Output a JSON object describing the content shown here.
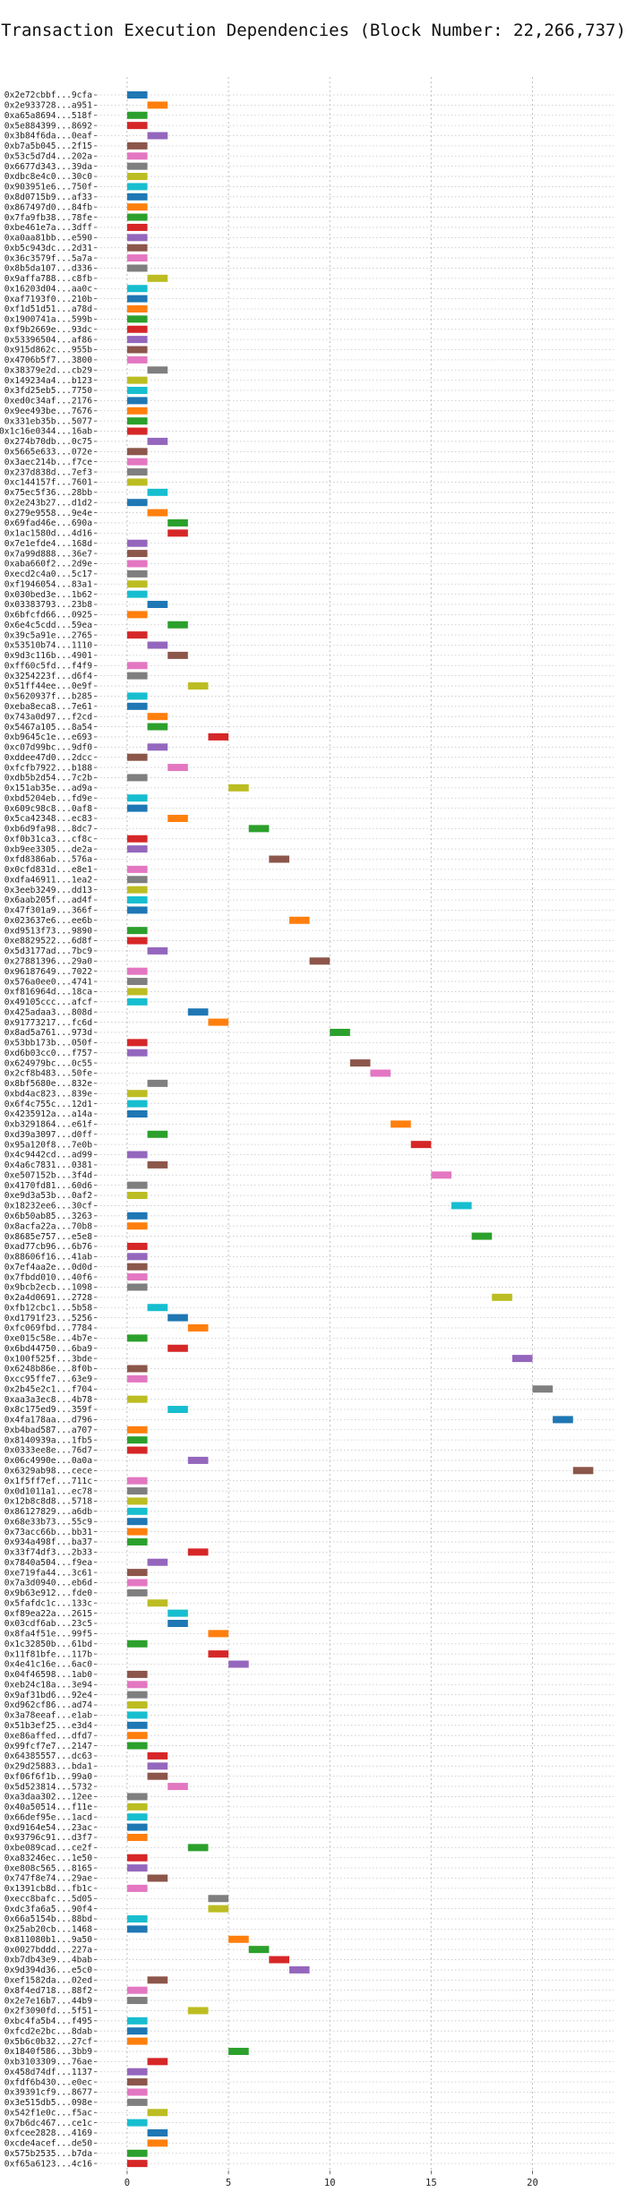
{
  "chart_data": {
    "type": "bar",
    "title": "Transaction Execution Dependencies (Block Number: 22,266,737)",
    "xlabel": "",
    "ylabel": "",
    "xlim": [
      -1.5,
      24
    ],
    "xticks": [
      0,
      5,
      10,
      15,
      20
    ],
    "grid": true,
    "palette": [
      "#1f77b4",
      "#ff7f0e",
      "#2ca02c",
      "#d62728",
      "#9467bd",
      "#8c564b",
      "#e377c2",
      "#7f7f7f",
      "#bcbd22",
      "#17becf"
    ],
    "transactions": [
      {
        "label": "0x2e72cbbf...9cfa",
        "start": 0,
        "end": 1
      },
      {
        "label": "0x2e933728...a951",
        "start": 1,
        "end": 2
      },
      {
        "label": "0xa65a8694...518f",
        "start": 0,
        "end": 1
      },
      {
        "label": "0x5e884399...8692",
        "start": 0,
        "end": 1
      },
      {
        "label": "0x3b84f6da...0eaf",
        "start": 1,
        "end": 2
      },
      {
        "label": "0xb7a5b045...2f15",
        "start": 0,
        "end": 1
      },
      {
        "label": "0x53c5d7d4...202a",
        "start": 0,
        "end": 1
      },
      {
        "label": "0x6677d343...39da",
        "start": 0,
        "end": 1
      },
      {
        "label": "0xdbc8e4c0...30c0",
        "start": 0,
        "end": 1
      },
      {
        "label": "0x903951e6...750f",
        "start": 0,
        "end": 1
      },
      {
        "label": "0x8d0715b9...af33",
        "start": 0,
        "end": 1
      },
      {
        "label": "0x867497d0...84fb",
        "start": 0,
        "end": 1
      },
      {
        "label": "0x7fa9fb38...78fe",
        "start": 0,
        "end": 1
      },
      {
        "label": "0xbe461e7a...3dff",
        "start": 0,
        "end": 1
      },
      {
        "label": "0xa0aa81bb...e590",
        "start": 0,
        "end": 1
      },
      {
        "label": "0xb5c943dc...2d31",
        "start": 0,
        "end": 1
      },
      {
        "label": "0x36c3579f...5a7a",
        "start": 0,
        "end": 1
      },
      {
        "label": "0x8b5da107...d336",
        "start": 0,
        "end": 1
      },
      {
        "label": "0x9affa788...c8fb",
        "start": 1,
        "end": 2
      },
      {
        "label": "0x16203d04...aa0c",
        "start": 0,
        "end": 1
      },
      {
        "label": "0xaf7193f0...210b",
        "start": 0,
        "end": 1
      },
      {
        "label": "0xf1d51d51...a78d",
        "start": 0,
        "end": 1
      },
      {
        "label": "0x1900741a...599b",
        "start": 0,
        "end": 1
      },
      {
        "label": "0xf9b2669e...93dc",
        "start": 0,
        "end": 1
      },
      {
        "label": "0x53396504...af86",
        "start": 0,
        "end": 1
      },
      {
        "label": "0x915d862c...955b",
        "start": 0,
        "end": 1
      },
      {
        "label": "0x4706b5f7...3800",
        "start": 0,
        "end": 1
      },
      {
        "label": "0x38379e2d...cb29",
        "start": 1,
        "end": 2
      },
      {
        "label": "0x149234a4...b123",
        "start": 0,
        "end": 1
      },
      {
        "label": "0x3fd25eb5...7750",
        "start": 0,
        "end": 1
      },
      {
        "label": "0xed0c34af...2176",
        "start": 0,
        "end": 1
      },
      {
        "label": "0x9ee493be...7676",
        "start": 0,
        "end": 1
      },
      {
        "label": "0x331eb35b...5077",
        "start": 0,
        "end": 1
      },
      {
        "label": "0x1c16e0344...16ab",
        "start": 0,
        "end": 1
      },
      {
        "label": "0x274b70db...0c75",
        "start": 1,
        "end": 2
      },
      {
        "label": "0x5665e633...072e",
        "start": 0,
        "end": 1
      },
      {
        "label": "0x3aec214b...f7ce",
        "start": 0,
        "end": 1
      },
      {
        "label": "0x237d838d...7ef3",
        "start": 0,
        "end": 1
      },
      {
        "label": "0xc144157f...7601",
        "start": 0,
        "end": 1
      },
      {
        "label": "0x75ec5f36...28bb",
        "start": 1,
        "end": 2
      },
      {
        "label": "0x2e243b27...d1d2",
        "start": 0,
        "end": 1
      },
      {
        "label": "0x279e9558...9e4e",
        "start": 1,
        "end": 2
      },
      {
        "label": "0x69fad46e...690a",
        "start": 2,
        "end": 3
      },
      {
        "label": "0x1ac1580d...4d16",
        "start": 2,
        "end": 3
      },
      {
        "label": "0x7e1efde4...168d",
        "start": 0,
        "end": 1
      },
      {
        "label": "0x7a99d888...36e7",
        "start": 0,
        "end": 1
      },
      {
        "label": "0xaba660f2...2d9e",
        "start": 0,
        "end": 1
      },
      {
        "label": "0xecd2c4a0...5c17",
        "start": 0,
        "end": 1
      },
      {
        "label": "0xf1946054...83a1",
        "start": 0,
        "end": 1
      },
      {
        "label": "0x030bed3e...1b62",
        "start": 0,
        "end": 1
      },
      {
        "label": "0x03383793...23b8",
        "start": 1,
        "end": 2
      },
      {
        "label": "0x6bfcfd66...0925",
        "start": 0,
        "end": 1
      },
      {
        "label": "0x6e4c5cdd...59ea",
        "start": 2,
        "end": 3
      },
      {
        "label": "0x39c5a91e...2765",
        "start": 0,
        "end": 1
      },
      {
        "label": "0x53510b74...1110",
        "start": 1,
        "end": 2
      },
      {
        "label": "0x9d3c116b...4901",
        "start": 2,
        "end": 3
      },
      {
        "label": "0xff60c5fd...f4f9",
        "start": 0,
        "end": 1
      },
      {
        "label": "0x3254223f...d6f4",
        "start": 0,
        "end": 1
      },
      {
        "label": "0x51ff44ee...0e9f",
        "start": 3,
        "end": 4
      },
      {
        "label": "0x5620937f...b285",
        "start": 0,
        "end": 1
      },
      {
        "label": "0xeba8eca8...7e61",
        "start": 0,
        "end": 1
      },
      {
        "label": "0x743a0d97...f2cd",
        "start": 1,
        "end": 2
      },
      {
        "label": "0x5467a105...8a54",
        "start": 1,
        "end": 2
      },
      {
        "label": "0xb9645c1e...e693",
        "start": 4,
        "end": 5
      },
      {
        "label": "0xc07d99bc...9df0",
        "start": 1,
        "end": 2
      },
      {
        "label": "0xddee47d0...2dcc",
        "start": 0,
        "end": 1
      },
      {
        "label": "0xfcfb7922...b188",
        "start": 2,
        "end": 3
      },
      {
        "label": "0xdb5b2d54...7c2b",
        "start": 0,
        "end": 1
      },
      {
        "label": "0x151ab35e...ad9a",
        "start": 5,
        "end": 6
      },
      {
        "label": "0xbd5204eb...fd9e",
        "start": 0,
        "end": 1
      },
      {
        "label": "0x609c98c8...0af8",
        "start": 0,
        "end": 1
      },
      {
        "label": "0x5ca42348...ec83",
        "start": 2,
        "end": 3
      },
      {
        "label": "0xb6d9fa98...8dc7",
        "start": 6,
        "end": 7
      },
      {
        "label": "0xf0b31ca3...cf8c",
        "start": 0,
        "end": 1
      },
      {
        "label": "0xb9ee3305...de2a",
        "start": 0,
        "end": 1
      },
      {
        "label": "0xfd8386ab...576a",
        "start": 7,
        "end": 8
      },
      {
        "label": "0x0cfd831d...e8e1",
        "start": 0,
        "end": 1
      },
      {
        "label": "0xdfa46911...1ea2",
        "start": 0,
        "end": 1
      },
      {
        "label": "0x3eeb3249...dd13",
        "start": 0,
        "end": 1
      },
      {
        "label": "0x6aab205f...ad4f",
        "start": 0,
        "end": 1
      },
      {
        "label": "0x47f301a9...366f",
        "start": 0,
        "end": 1
      },
      {
        "label": "0x023637e6...ee6b",
        "start": 8,
        "end": 9
      },
      {
        "label": "0xd9513f73...9890",
        "start": 0,
        "end": 1
      },
      {
        "label": "0xe8829522...6d8f",
        "start": 0,
        "end": 1
      },
      {
        "label": "0x5d3177ad...7bc9",
        "start": 1,
        "end": 2
      },
      {
        "label": "0x27881396...29a0",
        "start": 9,
        "end": 10
      },
      {
        "label": "0x96187649...7022",
        "start": 0,
        "end": 1
      },
      {
        "label": "0x576a0ee0...4741",
        "start": 0,
        "end": 1
      },
      {
        "label": "0xf816964d...18ca",
        "start": 0,
        "end": 1
      },
      {
        "label": "0x49105ccc...afcf",
        "start": 0,
        "end": 1
      },
      {
        "label": "0x425adaa3...808d",
        "start": 3,
        "end": 4
      },
      {
        "label": "0x91773217...fc6d",
        "start": 4,
        "end": 5
      },
      {
        "label": "0x8ad5a761...973d",
        "start": 10,
        "end": 11
      },
      {
        "label": "0x53bb173b...050f",
        "start": 0,
        "end": 1
      },
      {
        "label": "0xd6b03cc0...f757",
        "start": 0,
        "end": 1
      },
      {
        "label": "0x624979bc...0c55",
        "start": 11,
        "end": 12
      },
      {
        "label": "0x2cf8b483...50fe",
        "start": 12,
        "end": 13
      },
      {
        "label": "0x8bf5680e...832e",
        "start": 1,
        "end": 2
      },
      {
        "label": "0xbd4ac823...839e",
        "start": 0,
        "end": 1
      },
      {
        "label": "0x6f4c755c...12d1",
        "start": 0,
        "end": 1
      },
      {
        "label": "0x4235912a...a14a",
        "start": 0,
        "end": 1
      },
      {
        "label": "0xb3291864...e61f",
        "start": 13,
        "end": 14
      },
      {
        "label": "0xd39a3097...d0ff",
        "start": 1,
        "end": 2
      },
      {
        "label": "0x95a120f8...7e0b",
        "start": 14,
        "end": 15
      },
      {
        "label": "0x4c9442cd...ad99",
        "start": 0,
        "end": 1
      },
      {
        "label": "0x4a6c7831...0381",
        "start": 1,
        "end": 2
      },
      {
        "label": "0xe507152b...3f4d",
        "start": 15,
        "end": 16
      },
      {
        "label": "0x4170fd81...60d6",
        "start": 0,
        "end": 1
      },
      {
        "label": "0xe9d3a53b...0af2",
        "start": 0,
        "end": 1
      },
      {
        "label": "0x18232ee6...30cf",
        "start": 16,
        "end": 17
      },
      {
        "label": "0x6b50ab85...3263",
        "start": 0,
        "end": 1
      },
      {
        "label": "0x8acfa22a...70b8",
        "start": 0,
        "end": 1
      },
      {
        "label": "0x8685e757...e5e8",
        "start": 17,
        "end": 18
      },
      {
        "label": "0xad77cb96...6b76",
        "start": 0,
        "end": 1
      },
      {
        "label": "0x88606f16...41ab",
        "start": 0,
        "end": 1
      },
      {
        "label": "0x7ef4aa2e...0d0d",
        "start": 0,
        "end": 1
      },
      {
        "label": "0x7fbdd010...40f6",
        "start": 0,
        "end": 1
      },
      {
        "label": "0x9bcb2ecb...1098",
        "start": 0,
        "end": 1
      },
      {
        "label": "0x2a4d0691...2728",
        "start": 18,
        "end": 19
      },
      {
        "label": "0xfb12cbc1...5b58",
        "start": 1,
        "end": 2
      },
      {
        "label": "0xd1791f23...5256",
        "start": 2,
        "end": 3
      },
      {
        "label": "0xfc069fbd...7784",
        "start": 3,
        "end": 4
      },
      {
        "label": "0xe015c58e...4b7e",
        "start": 0,
        "end": 1
      },
      {
        "label": "0x6bd44750...6ba9",
        "start": 2,
        "end": 3
      },
      {
        "label": "0x100f525f...3bde",
        "start": 19,
        "end": 20
      },
      {
        "label": "0x6248b86e...8f0b",
        "start": 0,
        "end": 1
      },
      {
        "label": "0xcc95ffe7...63e9",
        "start": 0,
        "end": 1
      },
      {
        "label": "0x2b45e2c1...f704",
        "start": 20,
        "end": 21
      },
      {
        "label": "0xaa3a3ec8...4b78",
        "start": 0,
        "end": 1
      },
      {
        "label": "0x8c175ed9...359f",
        "start": 2,
        "end": 3
      },
      {
        "label": "0x4fa178aa...d796",
        "start": 21,
        "end": 22
      },
      {
        "label": "0xb4bad587...a707",
        "start": 0,
        "end": 1
      },
      {
        "label": "0x8140939a...1fb5",
        "start": 0,
        "end": 1
      },
      {
        "label": "0x0333ee8e...76d7",
        "start": 0,
        "end": 1
      },
      {
        "label": "0x06c4990e...0a0a",
        "start": 3,
        "end": 4
      },
      {
        "label": "0x6329ab98...cece",
        "start": 22,
        "end": 23
      },
      {
        "label": "0x1f5ff7ef...711c",
        "start": 0,
        "end": 1
      },
      {
        "label": "0x0d1011a1...ec78",
        "start": 0,
        "end": 1
      },
      {
        "label": "0x12b8c8d8...5718",
        "start": 0,
        "end": 1
      },
      {
        "label": "0x86127829...a6db",
        "start": 0,
        "end": 1
      },
      {
        "label": "0x68e33b73...55c9",
        "start": 0,
        "end": 1
      },
      {
        "label": "0x73acc66b...bb31",
        "start": 0,
        "end": 1
      },
      {
        "label": "0x934a498f...ba37",
        "start": 0,
        "end": 1
      },
      {
        "label": "0x33f74df3...2b33",
        "start": 3,
        "end": 4
      },
      {
        "label": "0x7840a504...f9ea",
        "start": 1,
        "end": 2
      },
      {
        "label": "0xe719fa44...3c61",
        "start": 0,
        "end": 1
      },
      {
        "label": "0x7a3d0940...eb6d",
        "start": 0,
        "end": 1
      },
      {
        "label": "0x9b63e912...fde0",
        "start": 0,
        "end": 1
      },
      {
        "label": "0x5fafdc1c...133c",
        "start": 1,
        "end": 2
      },
      {
        "label": "0xf89ea22a...2615",
        "start": 2,
        "end": 3
      },
      {
        "label": "0x03cdf6ab...23c5",
        "start": 2,
        "end": 3
      },
      {
        "label": "0x8fa4f51e...99f5",
        "start": 4,
        "end": 5
      },
      {
        "label": "0x1c32850b...61bd",
        "start": 0,
        "end": 1
      },
      {
        "label": "0x11f81bfe...117b",
        "start": 4,
        "end": 5
      },
      {
        "label": "0x4e41c16e...6ac0",
        "start": 5,
        "end": 6
      },
      {
        "label": "0x04f46598...1ab0",
        "start": 0,
        "end": 1
      },
      {
        "label": "0xeb24c18a...3e94",
        "start": 0,
        "end": 1
      },
      {
        "label": "0x9af31bd6...92e4",
        "start": 0,
        "end": 1
      },
      {
        "label": "0xd962cf86...ad74",
        "start": 0,
        "end": 1
      },
      {
        "label": "0x3a78eeaf...e1ab",
        "start": 0,
        "end": 1
      },
      {
        "label": "0x51b3ef25...e3d4",
        "start": 0,
        "end": 1
      },
      {
        "label": "0xe86affed...dfd7",
        "start": 0,
        "end": 1
      },
      {
        "label": "0x99fcf7e7...2147",
        "start": 0,
        "end": 1
      },
      {
        "label": "0x64385557...dc63",
        "start": 1,
        "end": 2
      },
      {
        "label": "0x29d25883...bda1",
        "start": 1,
        "end": 2
      },
      {
        "label": "0xf06f6f1b...99a0",
        "start": 1,
        "end": 2
      },
      {
        "label": "0x5d523814...5732",
        "start": 2,
        "end": 3
      },
      {
        "label": "0xa3daa302...12ee",
        "start": 0,
        "end": 1
      },
      {
        "label": "0x40a50514...f11e",
        "start": 0,
        "end": 1
      },
      {
        "label": "0x66def95e...1acd",
        "start": 0,
        "end": 1
      },
      {
        "label": "0xd9164e54...23ac",
        "start": 0,
        "end": 1
      },
      {
        "label": "0x93796c91...d3f7",
        "start": 0,
        "end": 1
      },
      {
        "label": "0xbe089cad...ce2f",
        "start": 3,
        "end": 4
      },
      {
        "label": "0xa83246ec...1e50",
        "start": 0,
        "end": 1
      },
      {
        "label": "0xe808c565...8165",
        "start": 0,
        "end": 1
      },
      {
        "label": "0x747f8e74...29ae",
        "start": 1,
        "end": 2
      },
      {
        "label": "0x1391cb8d...fb1c",
        "start": 0,
        "end": 1
      },
      {
        "label": "0xecc8bafc...5d05",
        "start": 4,
        "end": 5
      },
      {
        "label": "0xdc3fa6a5...90f4",
        "start": 4,
        "end": 5
      },
      {
        "label": "0x66a5154b...88bd",
        "start": 0,
        "end": 1
      },
      {
        "label": "0x25ab20cb...1468",
        "start": 0,
        "end": 1
      },
      {
        "label": "0x811080b1...9a50",
        "start": 5,
        "end": 6
      },
      {
        "label": "0x0027bddd...227a",
        "start": 6,
        "end": 7
      },
      {
        "label": "0xb7db43e9...4bab",
        "start": 7,
        "end": 8
      },
      {
        "label": "0x9d394d36...e5c0",
        "start": 8,
        "end": 9
      },
      {
        "label": "0xef1582da...02ed",
        "start": 1,
        "end": 2
      },
      {
        "label": "0x8f4ed718...88f2",
        "start": 0,
        "end": 1
      },
      {
        "label": "0x2e7e16b7...44b9",
        "start": 0,
        "end": 1
      },
      {
        "label": "0x2f3090fd...5f51",
        "start": 3,
        "end": 4
      },
      {
        "label": "0xbc4fa5b4...f495",
        "start": 0,
        "end": 1
      },
      {
        "label": "0xfcd2e2bc...8dab",
        "start": 0,
        "end": 1
      },
      {
        "label": "0x5b6c0b32...27cf",
        "start": 0,
        "end": 1
      },
      {
        "label": "0x1840f586...3bb9",
        "start": 5,
        "end": 6
      },
      {
        "label": "0xb3103309...76ae",
        "start": 1,
        "end": 2
      },
      {
        "label": "0x458d74df...1137",
        "start": 0,
        "end": 1
      },
      {
        "label": "0xfdf6b430...e0ec",
        "start": 0,
        "end": 1
      },
      {
        "label": "0x39391cf9...8677",
        "start": 0,
        "end": 1
      },
      {
        "label": "0x3e515db5...098e",
        "start": 0,
        "end": 1
      },
      {
        "label": "0x542f1e0c...f5ac",
        "start": 1,
        "end": 2
      },
      {
        "label": "0x7b6dc467...ce1c",
        "start": 0,
        "end": 1
      },
      {
        "label": "0xfcee2828...4169",
        "start": 1,
        "end": 2
      },
      {
        "label": "0xcde4acef...de50",
        "start": 1,
        "end": 2
      },
      {
        "label": "0x575b2535...b7da",
        "start": 0,
        "end": 1
      },
      {
        "label": "0xf65a6123...4c16",
        "start": 0,
        "end": 1
      }
    ]
  }
}
